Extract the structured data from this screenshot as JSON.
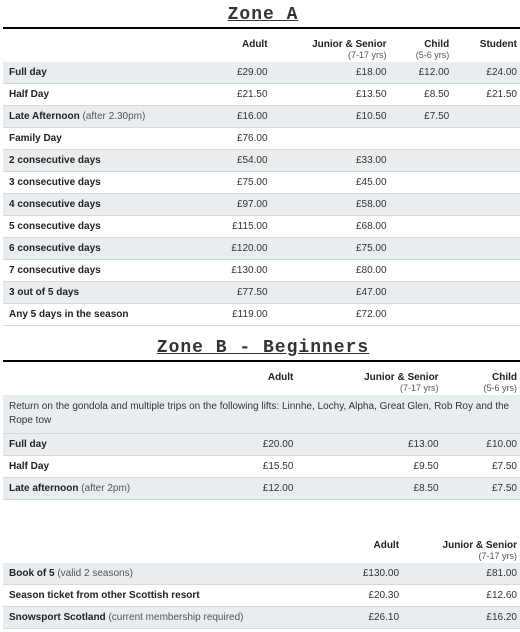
{
  "zoneA": {
    "title": "Zone A",
    "columns": [
      {
        "label": ""
      },
      {
        "label": "Adult"
      },
      {
        "label": "Junior & Senior",
        "sub": "(7-17 yrs)"
      },
      {
        "label": "Child",
        "sub": "(5-6 yrs)"
      },
      {
        "label": "Student"
      }
    ],
    "rows": [
      {
        "label": "Full day",
        "c": [
          "£29.00",
          "£18.00",
          "£12.00",
          "£24.00"
        ]
      },
      {
        "label": "Half Day",
        "c": [
          "£21.50",
          "£13.50",
          "£8.50",
          "£21.50"
        ]
      },
      {
        "label": "Late Afternoon",
        "paren": "(after 2.30pm)",
        "c": [
          "£16.00",
          "£10.50",
          "£7.50",
          ""
        ]
      },
      {
        "label": "Family Day",
        "c": [
          "£76.00",
          "",
          "",
          ""
        ]
      },
      {
        "label": "2 consecutive days",
        "c": [
          "£54.00",
          "£33.00",
          "",
          ""
        ]
      },
      {
        "label": "3 consecutive days",
        "c": [
          "£75.00",
          "£45.00",
          "",
          ""
        ]
      },
      {
        "label": "4 consecutive days",
        "c": [
          "£97.00",
          "£58.00",
          "",
          ""
        ]
      },
      {
        "label": "5 consecutive days",
        "c": [
          "£115.00",
          "£68.00",
          "",
          ""
        ]
      },
      {
        "label": "6 consecutive days",
        "c": [
          "£120.00",
          "£75.00",
          "",
          ""
        ]
      },
      {
        "label": "7 consecutive days",
        "c": [
          "£130.00",
          "£80.00",
          "",
          ""
        ]
      },
      {
        "label": "3 out of 5 days",
        "c": [
          "£77.50",
          "£47.00",
          "",
          ""
        ]
      },
      {
        "label": "Any 5 days in the season",
        "c": [
          "£119.00",
          "£72.00",
          "",
          ""
        ]
      }
    ]
  },
  "zoneB": {
    "title": "Zone B - Beginners",
    "note": "Return on the gondola and multiple trips on the following lifts: Linnhe, Lochy, Alpha, Great Glen, Rob Roy and the Rope tow",
    "columns": [
      {
        "label": ""
      },
      {
        "label": "Adult"
      },
      {
        "label": "Junior & Senior",
        "sub": "(7-17 yrs)"
      },
      {
        "label": "Child",
        "sub": "(5-6 yrs)"
      }
    ],
    "rows": [
      {
        "label": "Full day",
        "c": [
          "£20.00",
          "£13.00",
          "£10.00"
        ]
      },
      {
        "label": "Half Day",
        "c": [
          "£15.50",
          "£9.50",
          "£7.50"
        ]
      },
      {
        "label": "Late afternoon",
        "paren": "(after 2pm)",
        "c": [
          "£12.00",
          "£8.50",
          "£7.50"
        ]
      }
    ]
  },
  "extra": {
    "columns": [
      {
        "label": ""
      },
      {
        "label": "Adult"
      },
      {
        "label": "Junior & Senior",
        "sub": "(7-17 yrs)"
      }
    ],
    "rows": [
      {
        "label": "Book of 5",
        "paren": "(valid 2 seasons)",
        "c": [
          "£130.00",
          "£81.00"
        ]
      },
      {
        "label": "Season ticket from other Scottish resort",
        "c": [
          "£20.30",
          "£12.60"
        ]
      },
      {
        "label": "Snowsport Scotland",
        "paren": "(current membership required)",
        "c": [
          "£26.10",
          "£16.20"
        ]
      }
    ]
  }
}
